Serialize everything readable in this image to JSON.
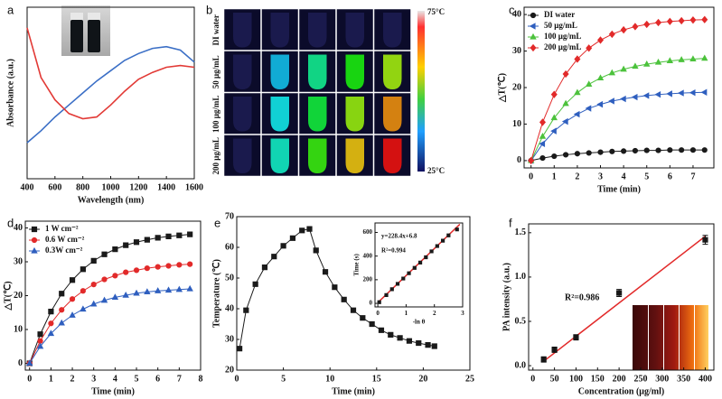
{
  "chart_data": [
    {
      "type": "line",
      "panel": "a",
      "xlabel": "Wavelength (nm)",
      "ylabel": "Absorbance (a.u.)",
      "x": [
        400,
        500,
        600,
        700,
        800,
        900,
        1000,
        1100,
        1200,
        1300,
        1400,
        1500,
        1600
      ],
      "xlim": [
        400,
        1600
      ],
      "ylim": [
        0,
        1
      ],
      "xticks": [
        400,
        600,
        800,
        1000,
        1200,
        1400,
        1600
      ],
      "yticks": [],
      "series": [
        {
          "color": "#3b6fc6",
          "values": [
            0.21,
            0.28,
            0.36,
            0.43,
            0.5,
            0.57,
            0.63,
            0.69,
            0.73,
            0.76,
            0.77,
            0.75,
            0.68
          ]
        },
        {
          "color": "#e23a36",
          "values": [
            0.88,
            0.59,
            0.46,
            0.38,
            0.35,
            0.36,
            0.43,
            0.51,
            0.58,
            0.62,
            0.65,
            0.66,
            0.65
          ]
        }
      ]
    },
    {
      "type": "thermal-images",
      "panel": "b",
      "rows": [
        "DI water",
        "50 μg/mL",
        "100 μg/mL",
        "200 μg/mL"
      ],
      "colorbar_labels": [
        "75°C",
        "25°C"
      ]
    },
    {
      "type": "scatter",
      "panel": "c",
      "xlabel": "Time (min)",
      "ylabel": "△T(℃)",
      "legend": "upper left",
      "x": [
        0,
        0.5,
        1,
        1.5,
        2,
        2.5,
        3,
        3.5,
        4,
        4.5,
        5,
        5.5,
        6,
        6.5,
        7,
        7.5
      ],
      "xlim": [
        -0.3,
        7.9
      ],
      "ylim": [
        -2,
        42
      ],
      "xticks": [
        0,
        1,
        2,
        3,
        4,
        5,
        6,
        7
      ],
      "yticks": [
        0,
        10,
        20,
        30,
        40
      ],
      "series": [
        {
          "name": "DI water",
          "color": "#1a1a1a",
          "marker": "circle",
          "values": [
            0,
            0.7,
            1.2,
            1.6,
            1.9,
            2.1,
            2.3,
            2.5,
            2.6,
            2.7,
            2.8,
            2.8,
            2.9,
            2.9,
            2.9,
            2.9
          ]
        },
        {
          "name": "50 μg/mL",
          "color": "#2f5fbf",
          "marker": "triangle-left",
          "values": [
            0,
            4.6,
            8.1,
            10.7,
            12.7,
            14.3,
            15.4,
            16.3,
            16.9,
            17.4,
            17.8,
            18.1,
            18.3,
            18.5,
            18.6,
            18.7
          ]
        },
        {
          "name": "100 μg/mL",
          "color": "#4cc23c",
          "marker": "triangle-up",
          "values": [
            0,
            6.6,
            11.7,
            15.6,
            18.6,
            20.9,
            22.6,
            24.0,
            25.0,
            25.8,
            26.4,
            26.9,
            27.3,
            27.6,
            27.8,
            28.0
          ]
        },
        {
          "name": "200 μg/mL",
          "color": "#e22a2a",
          "marker": "diamond",
          "values": [
            0,
            10.5,
            18.1,
            23.7,
            27.8,
            30.8,
            33.0,
            34.6,
            35.8,
            36.7,
            37.3,
            37.8,
            38.1,
            38.3,
            38.5,
            38.6
          ]
        }
      ]
    },
    {
      "type": "scatter",
      "panel": "d",
      "xlabel": "Time (min)",
      "ylabel": "△T(℃)",
      "legend": "upper left",
      "x": [
        0,
        0.5,
        1,
        1.5,
        2,
        2.5,
        3,
        3.5,
        4,
        4.5,
        5,
        5.5,
        6,
        6.5,
        7,
        7.5
      ],
      "xlim": [
        -0.2,
        8
      ],
      "ylim": [
        -2,
        42
      ],
      "xticks": [
        0,
        1,
        2,
        3,
        4,
        5,
        6,
        7,
        8
      ],
      "yticks": [
        0,
        10,
        20,
        30,
        40
      ],
      "series": [
        {
          "name": "1 W cm⁻²",
          "color": "#1a1a1a",
          "marker": "square",
          "values": [
            0,
            8.6,
            15.3,
            20.6,
            24.6,
            27.8,
            30.3,
            32.2,
            33.7,
            34.9,
            35.8,
            36.5,
            37.1,
            37.5,
            37.8,
            38.1
          ]
        },
        {
          "name": "0.6 W cm⁻²",
          "color": "#e22a2a",
          "marker": "circle",
          "values": [
            0,
            6.6,
            11.8,
            15.8,
            19.0,
            21.4,
            23.3,
            24.8,
            25.9,
            26.9,
            27.5,
            28.1,
            28.5,
            28.8,
            29.1,
            29.3
          ]
        },
        {
          "name": "0.3W cm⁻²",
          "color": "#2f5fbf",
          "marker": "triangle-up",
          "values": [
            0,
            5.0,
            8.8,
            11.9,
            14.2,
            16.0,
            17.5,
            18.6,
            19.5,
            20.1,
            20.7,
            21.1,
            21.4,
            21.6,
            21.8,
            22.0
          ]
        }
      ]
    },
    {
      "type": "scatter",
      "panel": "e",
      "xlabel": "Time (min)",
      "ylabel": "Temperature (℃)",
      "x": [
        0.3,
        1,
        2,
        3,
        4,
        5,
        6,
        7,
        7.8,
        8.5,
        9.5,
        10.5,
        11.5,
        12.5,
        13.5,
        14.5,
        15.5,
        16.5,
        17.5,
        18.5,
        19.5,
        20.5,
        21.2
      ],
      "values": [
        27,
        39.5,
        48,
        53.5,
        57,
        60.5,
        63,
        65.5,
        66,
        59,
        52,
        47,
        43,
        39.5,
        37,
        35,
        33,
        31.5,
        30.5,
        29.5,
        28.8,
        28.2,
        27.8
      ],
      "color": "#1a1a1a",
      "marker": "square",
      "xlim": [
        0,
        25
      ],
      "ylim": [
        20,
        70
      ],
      "xticks": [
        0,
        5,
        10,
        15,
        20,
        25
      ],
      "yticks": [
        20,
        30,
        40,
        50,
        60,
        70
      ]
    },
    {
      "type": "scatter",
      "xlabel": "-ln θ",
      "ylabel": "Time (s)",
      "annotations": [
        "y=228.4x+6.8",
        "R²=0.994"
      ],
      "x": [
        0.05,
        0.3,
        0.5,
        0.7,
        0.9,
        1.1,
        1.3,
        1.5,
        1.7,
        1.9,
        2.1,
        2.3,
        2.5,
        2.8
      ],
      "values": [
        10,
        70,
        120,
        165,
        210,
        255,
        300,
        345,
        390,
        440,
        485,
        530,
        575,
        625
      ],
      "color": "#1a1a1a",
      "marker": "square",
      "fit": [
        [
          0,
          6.8
        ],
        [
          2.9,
          669.2
        ]
      ],
      "fit_color": "#e22a2a",
      "xlim": [
        -0.1,
        3
      ],
      "ylim": [
        -30,
        680
      ],
      "xticks": [
        0,
        1,
        2,
        3
      ],
      "yticks": [
        0,
        200,
        400,
        600
      ]
    },
    {
      "type": "scatter",
      "panel": "f",
      "xlabel": "Concentration (μg/ml)",
      "ylabel": "PA intensity (a.u.)",
      "annotations": [
        "R²=0.986"
      ],
      "x": [
        25,
        50,
        100,
        200,
        400
      ],
      "values": [
        0.07,
        0.18,
        0.32,
        0.82,
        1.42
      ],
      "errors": [
        0.03,
        0.03,
        0.03,
        0.04,
        0.05
      ],
      "color": "#1a1a1a",
      "marker": "square",
      "fit": [
        [
          25,
          0.05
        ],
        [
          400,
          1.46
        ]
      ],
      "fit_color": "#e22a2a",
      "xlim": [
        -10,
        420
      ],
      "ylim": [
        -0.05,
        1.6
      ],
      "xticks": [
        0,
        50,
        100,
        150,
        200,
        250,
        300,
        350,
        400
      ],
      "yticks": [
        {
          "value": 0,
          "label": "0.0"
        },
        {
          "value": 0.5,
          "label": "0.5"
        },
        {
          "value": 1,
          "label": "1.0"
        },
        {
          "value": 1.5,
          "label": "1.5"
        }
      ]
    }
  ]
}
